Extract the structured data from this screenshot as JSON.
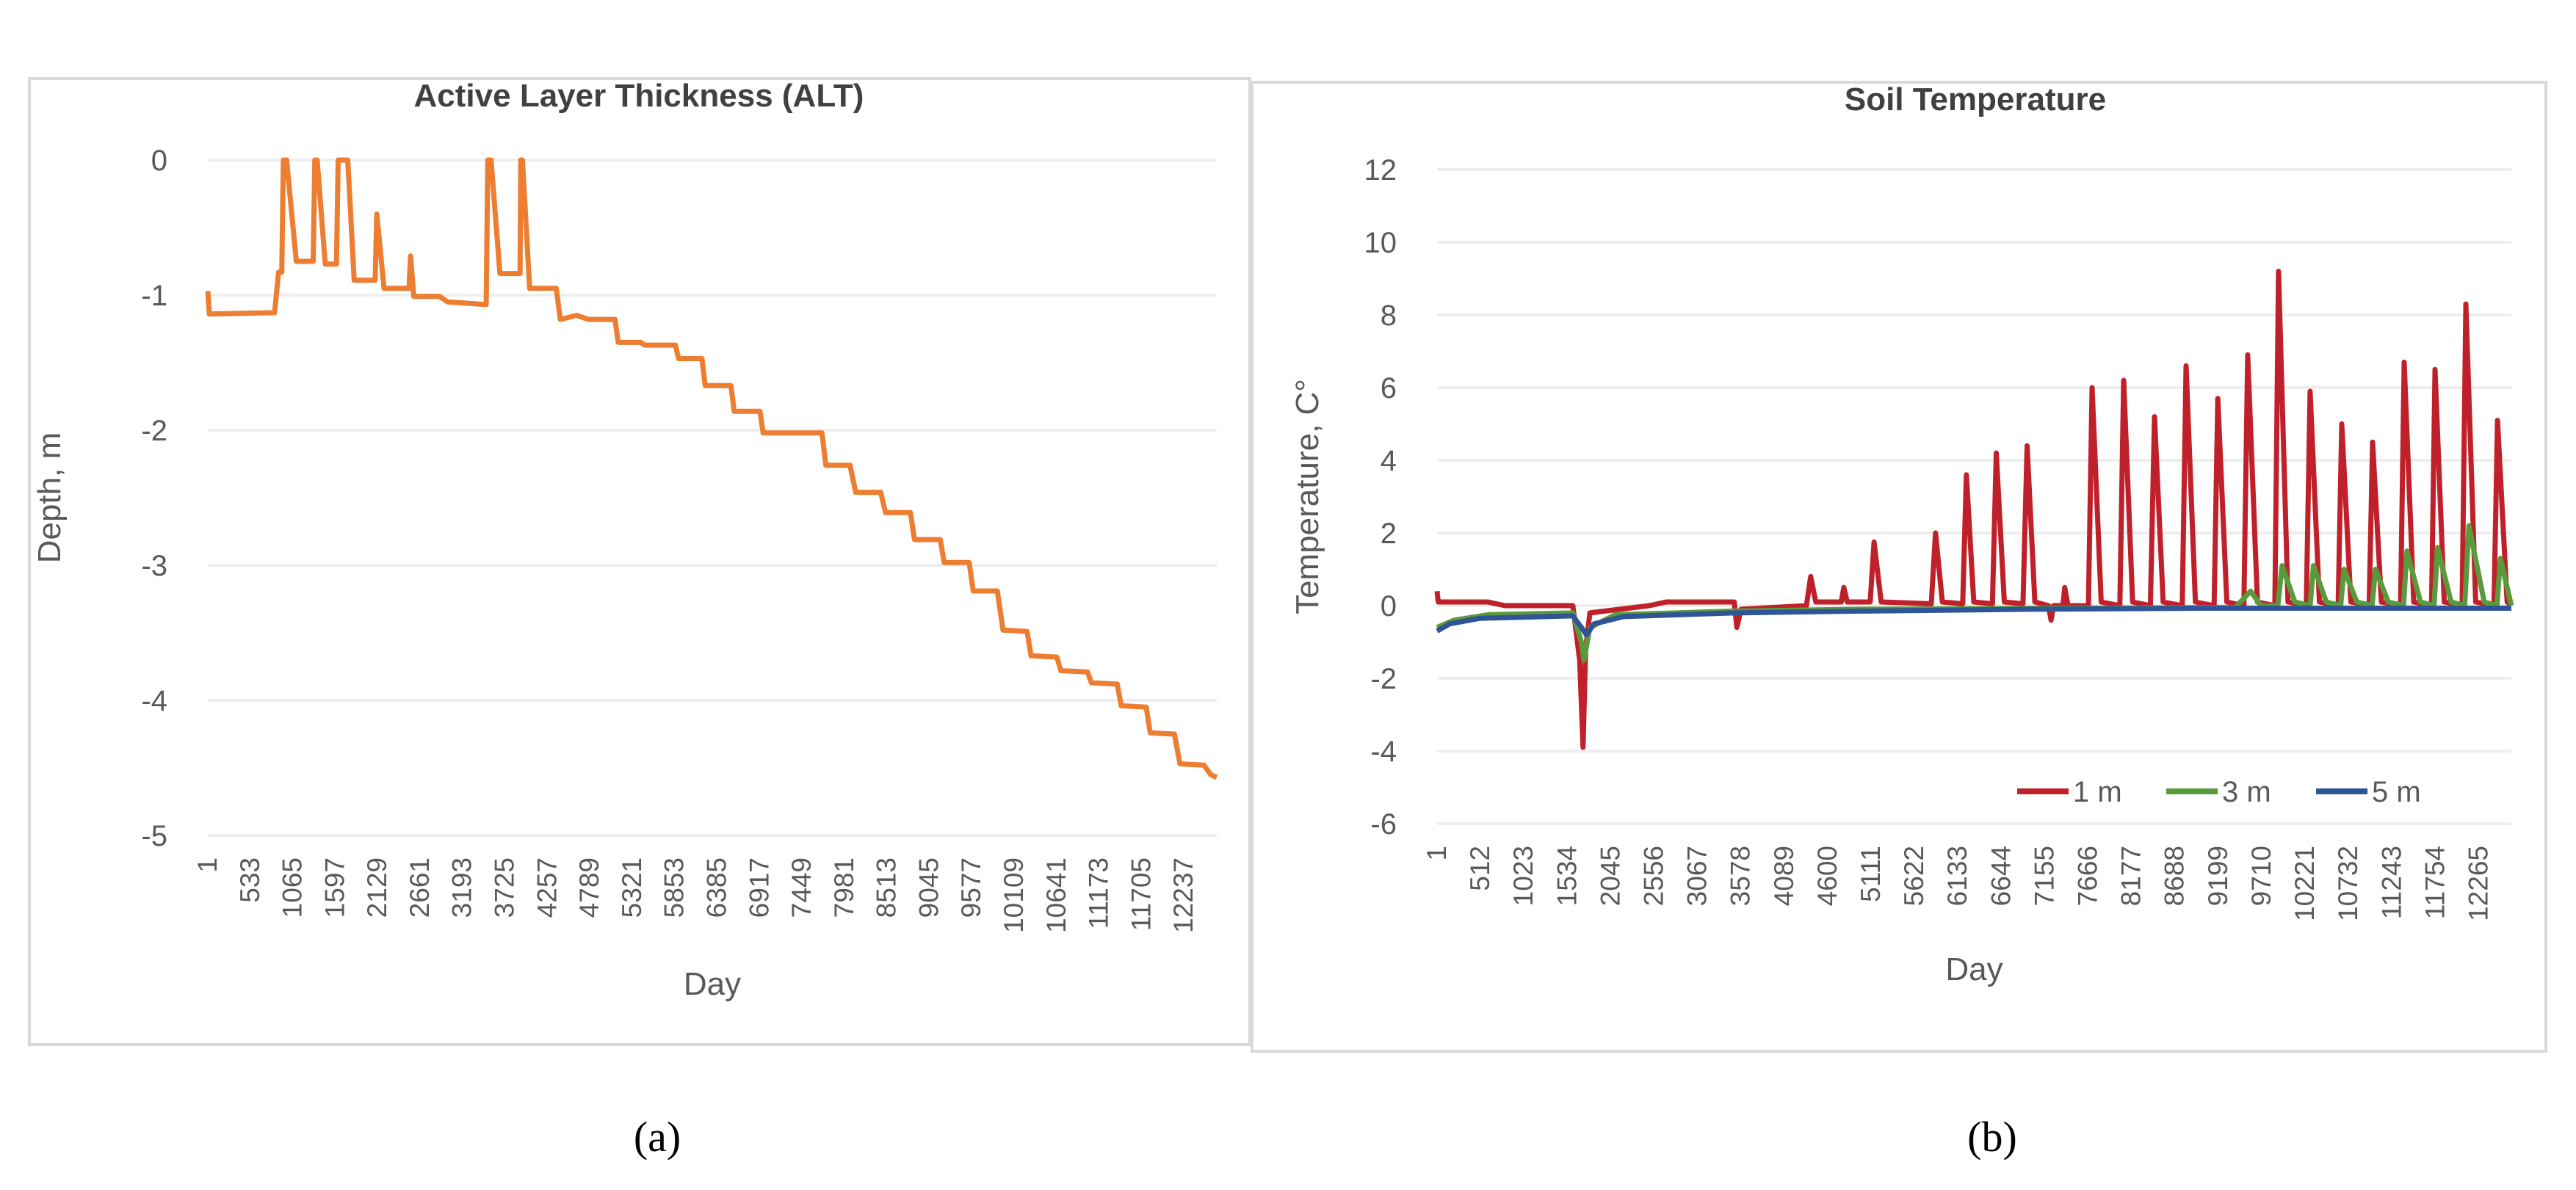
{
  "chart_data": [
    {
      "type": "line",
      "title": "Active Layer Thickness (ALT)",
      "xlabel": "Day",
      "ylabel": "Depth, m",
      "panel_label": "(a)",
      "xlim": [
        1,
        12650
      ],
      "ylim": [
        -5,
        0
      ],
      "yticks": [
        0,
        -1,
        -2,
        -3,
        -4,
        -5
      ],
      "xtick_labels": [
        "1",
        "533",
        "1065",
        "1597",
        "2129",
        "2661",
        "3193",
        "3725",
        "4257",
        "4789",
        "5321",
        "5853",
        "6385",
        "6917",
        "7449",
        "7981",
        "8513",
        "9045",
        "9577",
        "10109",
        "10641",
        "11173",
        "11705",
        "12237"
      ],
      "grid": true,
      "legend": "none",
      "series": [
        {
          "color": "#ED7D31",
          "points": [
            [
              1,
              -0.97
            ],
            [
              20,
              -1.14
            ],
            [
              838,
              -1.13
            ],
            [
              888,
              -0.83
            ],
            [
              928,
              -0.83
            ],
            [
              948,
              0
            ],
            [
              989,
              0
            ],
            [
              1110,
              -0.75
            ],
            [
              1322,
              -0.75
            ],
            [
              1342,
              0
            ],
            [
              1372,
              0
            ],
            [
              1473,
              -0.77
            ],
            [
              1614,
              -0.77
            ],
            [
              1635,
              0
            ],
            [
              1756,
              0
            ],
            [
              1836,
              -0.89
            ],
            [
              2099,
              -0.89
            ],
            [
              2119,
              -0.4
            ],
            [
              2210,
              -0.95
            ],
            [
              2523,
              -0.95
            ],
            [
              2543,
              -0.71
            ],
            [
              2583,
              -1.01
            ],
            [
              2906,
              -1.01
            ],
            [
              3007,
              -1.05
            ],
            [
              3491,
              -1.07
            ],
            [
              3511,
              0
            ],
            [
              3552,
              0
            ],
            [
              3663,
              -0.84
            ],
            [
              3915,
              -0.84
            ],
            [
              3925,
              0
            ],
            [
              3945,
              0
            ],
            [
              4036,
              -0.95
            ],
            [
              4369,
              -0.95
            ],
            [
              4420,
              -1.18
            ],
            [
              4622,
              -1.15
            ],
            [
              4773,
              -1.18
            ],
            [
              5106,
              -1.18
            ],
            [
              5146,
              -1.35
            ],
            [
              5429,
              -1.35
            ],
            [
              5479,
              -1.37
            ],
            [
              5863,
              -1.37
            ],
            [
              5903,
              -1.47
            ],
            [
              6196,
              -1.47
            ],
            [
              6236,
              -1.67
            ],
            [
              6559,
              -1.67
            ],
            [
              6600,
              -1.86
            ],
            [
              6923,
              -1.86
            ],
            [
              6963,
              -2.02
            ],
            [
              7700,
              -2.02
            ],
            [
              7750,
              -2.26
            ],
            [
              8052,
              -2.26
            ],
            [
              8123,
              -2.46
            ],
            [
              8436,
              -2.46
            ],
            [
              8497,
              -2.61
            ],
            [
              8809,
              -2.61
            ],
            [
              8860,
              -2.81
            ],
            [
              9183,
              -2.81
            ],
            [
              9233,
              -2.98
            ],
            [
              9546,
              -2.98
            ],
            [
              9596,
              -3.19
            ],
            [
              9899,
              -3.19
            ],
            [
              9970,
              -3.48
            ],
            [
              10272,
              -3.49
            ],
            [
              10322,
              -3.67
            ],
            [
              10645,
              -3.68
            ],
            [
              10696,
              -3.78
            ],
            [
              11029,
              -3.79
            ],
            [
              11079,
              -3.87
            ],
            [
              11402,
              -3.88
            ],
            [
              11452,
              -4.04
            ],
            [
              11765,
              -4.05
            ],
            [
              11816,
              -4.24
            ],
            [
              12119,
              -4.25
            ],
            [
              12189,
              -4.47
            ],
            [
              12492,
              -4.48
            ],
            [
              12573,
              -4.55
            ],
            [
              12650,
              -4.57
            ]
          ]
        }
      ]
    },
    {
      "type": "line",
      "title": "Soil Temperature",
      "xlabel": "Day",
      "ylabel": "Temperature, C°",
      "panel_label": "(b)",
      "xlim": [
        1,
        12650
      ],
      "ylim": [
        -6,
        12
      ],
      "yticks": [
        12,
        10,
        8,
        6,
        4,
        2,
        0,
        -2,
        -4,
        -6
      ],
      "xtick_labels": [
        "1",
        "512",
        "1023",
        "1534",
        "2045",
        "2556",
        "3067",
        "3578",
        "4089",
        "4600",
        "5111",
        "5622",
        "6133",
        "6644",
        "7155",
        "7666",
        "8177",
        "8688",
        "9199",
        "9710",
        "10221",
        "10732",
        "11243",
        "11754",
        "12265"
      ],
      "grid": true,
      "legend": "bottom-right",
      "series": [
        {
          "name": "1 m",
          "color": "#C0202A",
          "points": [
            [
              1,
              0.4
            ],
            [
              15,
              0.1
            ],
            [
              600,
              0.1
            ],
            [
              800,
              0.0
            ],
            [
              1600,
              0.0
            ],
            [
              1680,
              -1.5
            ],
            [
              1720,
              -3.9
            ],
            [
              1750,
              -1.2
            ],
            [
              1800,
              -0.2
            ],
            [
              2500,
              0.0
            ],
            [
              2700,
              0.1
            ],
            [
              3500,
              0.1
            ],
            [
              3530,
              -0.6
            ],
            [
              3580,
              -0.1
            ],
            [
              4350,
              0.0
            ],
            [
              4400,
              0.8
            ],
            [
              4460,
              0.1
            ],
            [
              4760,
              0.1
            ],
            [
              4790,
              0.5
            ],
            [
              4830,
              0.1
            ],
            [
              5100,
              0.1
            ],
            [
              5146,
              1.75
            ],
            [
              5230,
              0.1
            ],
            [
              5820,
              0.05
            ],
            [
              5870,
              2.0
            ],
            [
              5950,
              0.1
            ],
            [
              6190,
              0.05
            ],
            [
              6233,
              3.6
            ],
            [
              6320,
              0.1
            ],
            [
              6540,
              0.05
            ],
            [
              6585,
              4.2
            ],
            [
              6680,
              0.1
            ],
            [
              6900,
              0.05
            ],
            [
              6948,
              4.4
            ],
            [
              7040,
              0.1
            ],
            [
              7200,
              0.0
            ],
            [
              7230,
              -0.4
            ],
            [
              7260,
              0.0
            ],
            [
              7370,
              0.0
            ],
            [
              7391,
              0.5
            ],
            [
              7430,
              0.0
            ],
            [
              7670,
              0.0
            ],
            [
              7713,
              6.0
            ],
            [
              7820,
              0.1
            ],
            [
              8040,
              0.0
            ],
            [
              8085,
              6.2
            ],
            [
              8190,
              0.1
            ],
            [
              8400,
              0.0
            ],
            [
              8448,
              5.2
            ],
            [
              8550,
              0.1
            ],
            [
              8775,
              0.0
            ],
            [
              8820,
              6.6
            ],
            [
              8930,
              0.1
            ],
            [
              9150,
              0.0
            ],
            [
              9193,
              5.7
            ],
            [
              9300,
              0.1
            ],
            [
              9500,
              0.0
            ],
            [
              9545,
              6.9
            ],
            [
              9660,
              0.1
            ],
            [
              9865,
              0.0
            ],
            [
              9908,
              9.2
            ],
            [
              10020,
              0.1
            ],
            [
              10235,
              0.0
            ],
            [
              10280,
              5.9
            ],
            [
              10390,
              0.1
            ],
            [
              10610,
              0.0
            ],
            [
              10653,
              5.0
            ],
            [
              10760,
              0.1
            ],
            [
              10975,
              0.0
            ],
            [
              11016,
              4.5
            ],
            [
              11120,
              0.1
            ],
            [
              11345,
              0.0
            ],
            [
              11388,
              6.7
            ],
            [
              11500,
              0.1
            ],
            [
              11710,
              0.0
            ],
            [
              11751,
              6.5
            ],
            [
              11860,
              0.1
            ],
            [
              12070,
              0.0
            ],
            [
              12114,
              8.3
            ],
            [
              12230,
              0.1
            ],
            [
              12445,
              0.0
            ],
            [
              12487,
              5.1
            ],
            [
              12600,
              0.1
            ],
            [
              12650,
              0.0
            ]
          ]
        },
        {
          "name": "3 m",
          "color": "#5B9A3C",
          "points": [
            [
              1,
              -0.6
            ],
            [
              200,
              -0.4
            ],
            [
              600,
              -0.25
            ],
            [
              1600,
              -0.2
            ],
            [
              1700,
              -1.0
            ],
            [
              1730,
              -1.5
            ],
            [
              1800,
              -0.6
            ],
            [
              2100,
              -0.25
            ],
            [
              3500,
              -0.15
            ],
            [
              5000,
              -0.1
            ],
            [
              9400,
              -0.05
            ],
            [
              9580,
              0.4
            ],
            [
              9700,
              0.0
            ],
            [
              9900,
              0.0
            ],
            [
              9950,
              1.1
            ],
            [
              10100,
              0.1
            ],
            [
              10280,
              0.0
            ],
            [
              10320,
              1.1
            ],
            [
              10470,
              0.1
            ],
            [
              10640,
              0.0
            ],
            [
              10680,
              1.0
            ],
            [
              10830,
              0.1
            ],
            [
              11010,
              0.0
            ],
            [
              11050,
              1.0
            ],
            [
              11200,
              0.1
            ],
            [
              11380,
              0.0
            ],
            [
              11420,
              1.5
            ],
            [
              11580,
              0.1
            ],
            [
              11740,
              0.0
            ],
            [
              11780,
              1.6
            ],
            [
              11940,
              0.1
            ],
            [
              12100,
              0.0
            ],
            [
              12150,
              2.2
            ],
            [
              12330,
              0.1
            ],
            [
              12480,
              0.0
            ],
            [
              12520,
              1.3
            ],
            [
              12650,
              0.0
            ]
          ]
        },
        {
          "name": "5 m",
          "color": "#2F5597",
          "points": [
            [
              1,
              -0.7
            ],
            [
              150,
              -0.5
            ],
            [
              500,
              -0.35
            ],
            [
              1600,
              -0.28
            ],
            [
              1700,
              -0.6
            ],
            [
              1760,
              -0.8
            ],
            [
              1850,
              -0.5
            ],
            [
              2200,
              -0.3
            ],
            [
              3500,
              -0.2
            ],
            [
              5000,
              -0.15
            ],
            [
              7000,
              -0.1
            ],
            [
              9000,
              -0.07
            ],
            [
              12650,
              -0.07
            ]
          ]
        }
      ]
    }
  ]
}
